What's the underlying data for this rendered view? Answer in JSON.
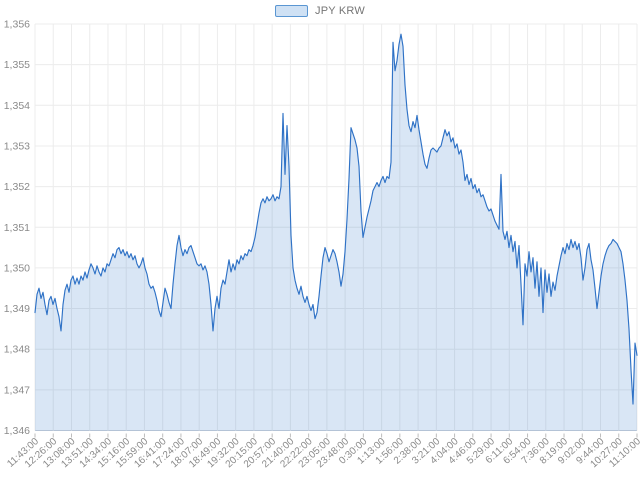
{
  "legend": {
    "label": "JPY KRW",
    "swatch_fill": "#cfe1f4",
    "swatch_border": "#5a96d2"
  },
  "chart_data": {
    "type": "area",
    "title": "",
    "series_name": "JPY KRW",
    "legend_position": "top",
    "grid": true,
    "line_color": "#2f72c6",
    "fill_color": "rgba(47,114,198,0.18)",
    "grid_color": "#ececec",
    "baseline_color": "#c2cbd8",
    "tick_color": "#bdbdbd",
    "axis_text_color": "#8a8a8a",
    "ylim": [
      1346,
      1356
    ],
    "y_tick_values": [
      1346,
      1347,
      1348,
      1349,
      1350,
      1351,
      1352,
      1353,
      1354,
      1355,
      1356
    ],
    "y_tick_labels": [
      "1,346",
      "1,347",
      "1,348",
      "1,349",
      "1,350",
      "1,351",
      "1,352",
      "1,353",
      "1,354",
      "1,355",
      "1,356"
    ],
    "x_tick_labels": [
      "11:43:00",
      "12:26:00",
      "13:08:00",
      "13:51:00",
      "14:34:00",
      "15:16:00",
      "15:59:00",
      "16:41:00",
      "17:24:00",
      "18:07:00",
      "18:49:00",
      "19:32:00",
      "20:15:00",
      "20:57:00",
      "21:40:00",
      "22:22:00",
      "23:05:00",
      "23:48:00",
      "0:30:00",
      "1:13:00",
      "1:56:00",
      "2:38:00",
      "3:21:00",
      "4:04:00",
      "4:46:00",
      "5:29:00",
      "6:11:00",
      "6:54:00",
      "7:36:00",
      "8:19:00",
      "9:02:00",
      "9:44:00",
      "10:27:00",
      "11:10:00"
    ],
    "x_spacing": "uniform",
    "values": [
      1348.9,
      1349.35,
      1349.5,
      1349.25,
      1349.4,
      1349.1,
      1348.85,
      1349.2,
      1349.3,
      1349.1,
      1349.25,
      1349.0,
      1348.8,
      1348.45,
      1349.1,
      1349.45,
      1349.6,
      1349.4,
      1349.7,
      1349.8,
      1349.6,
      1349.75,
      1349.6,
      1349.8,
      1349.7,
      1349.9,
      1349.75,
      1349.95,
      1350.1,
      1350.0,
      1349.85,
      1350.05,
      1349.9,
      1349.8,
      1350.0,
      1349.9,
      1350.1,
      1350.05,
      1350.2,
      1350.35,
      1350.25,
      1350.45,
      1350.5,
      1350.35,
      1350.45,
      1350.3,
      1350.4,
      1350.25,
      1350.35,
      1350.2,
      1350.3,
      1350.1,
      1350.0,
      1350.1,
      1350.25,
      1350.0,
      1349.85,
      1349.6,
      1349.5,
      1349.55,
      1349.4,
      1349.2,
      1348.95,
      1348.8,
      1349.15,
      1349.5,
      1349.35,
      1349.15,
      1349.0,
      1349.6,
      1350.1,
      1350.55,
      1350.8,
      1350.5,
      1350.3,
      1350.45,
      1350.35,
      1350.5,
      1350.55,
      1350.4,
      1350.25,
      1350.1,
      1350.05,
      1350.1,
      1349.95,
      1350.05,
      1349.9,
      1349.6,
      1349.1,
      1348.45,
      1349.0,
      1349.3,
      1349.0,
      1349.5,
      1349.7,
      1349.6,
      1349.9,
      1350.2,
      1349.9,
      1350.1,
      1349.95,
      1350.2,
      1350.1,
      1350.3,
      1350.2,
      1350.35,
      1350.3,
      1350.45,
      1350.4,
      1350.55,
      1350.75,
      1351.05,
      1351.35,
      1351.6,
      1351.7,
      1351.6,
      1351.75,
      1351.65,
      1351.7,
      1351.8,
      1351.65,
      1351.75,
      1351.7,
      1352.0,
      1353.8,
      1352.3,
      1353.5,
      1352.5,
      1350.8,
      1350.0,
      1349.7,
      1349.5,
      1349.35,
      1349.55,
      1349.3,
      1349.15,
      1349.3,
      1349.1,
      1348.95,
      1349.1,
      1348.75,
      1348.9,
      1349.3,
      1349.8,
      1350.25,
      1350.5,
      1350.35,
      1350.15,
      1350.3,
      1350.45,
      1350.35,
      1350.15,
      1349.9,
      1349.55,
      1349.85,
      1350.4,
      1351.2,
      1352.2,
      1353.45,
      1353.3,
      1353.15,
      1352.95,
      1352.5,
      1351.4,
      1350.75,
      1351.0,
      1351.25,
      1351.45,
      1351.65,
      1351.9,
      1352.0,
      1352.1,
      1352.0,
      1352.15,
      1352.25,
      1352.1,
      1352.25,
      1352.2,
      1352.6,
      1355.55,
      1354.85,
      1355.1,
      1355.5,
      1355.75,
      1355.45,
      1354.5,
      1353.9,
      1353.5,
      1353.35,
      1353.6,
      1353.45,
      1353.75,
      1353.4,
      1353.1,
      1352.8,
      1352.55,
      1352.45,
      1352.7,
      1352.9,
      1352.95,
      1352.9,
      1352.85,
      1352.95,
      1353.0,
      1353.2,
      1353.4,
      1353.25,
      1353.35,
      1353.1,
      1353.2,
      1352.95,
      1353.05,
      1352.8,
      1352.9,
      1352.6,
      1352.15,
      1352.3,
      1352.05,
      1352.2,
      1351.95,
      1352.05,
      1351.85,
      1351.95,
      1351.75,
      1351.8,
      1351.65,
      1351.5,
      1351.4,
      1351.45,
      1351.3,
      1351.15,
      1351.05,
      1350.95,
      1352.3,
      1350.9,
      1350.7,
      1350.9,
      1350.5,
      1350.8,
      1350.4,
      1350.65,
      1350.0,
      1350.55,
      1349.6,
      1348.6,
      1350.1,
      1349.8,
      1350.4,
      1349.9,
      1350.25,
      1349.5,
      1350.15,
      1349.3,
      1350.0,
      1348.9,
      1349.95,
      1349.4,
      1349.85,
      1349.3,
      1349.65,
      1349.45,
      1349.8,
      1350.05,
      1350.3,
      1350.5,
      1350.35,
      1350.6,
      1350.45,
      1350.7,
      1350.5,
      1350.65,
      1350.45,
      1350.6,
      1350.25,
      1349.7,
      1350.0,
      1350.45,
      1350.6,
      1350.2,
      1349.95,
      1349.5,
      1349.0,
      1349.4,
      1349.8,
      1350.1,
      1350.3,
      1350.45,
      1350.55,
      1350.6,
      1350.7,
      1350.65,
      1350.6,
      1350.5,
      1350.4,
      1350.1,
      1349.7,
      1349.2,
      1348.5,
      1347.5,
      1346.65,
      1348.15,
      1347.85
    ]
  }
}
